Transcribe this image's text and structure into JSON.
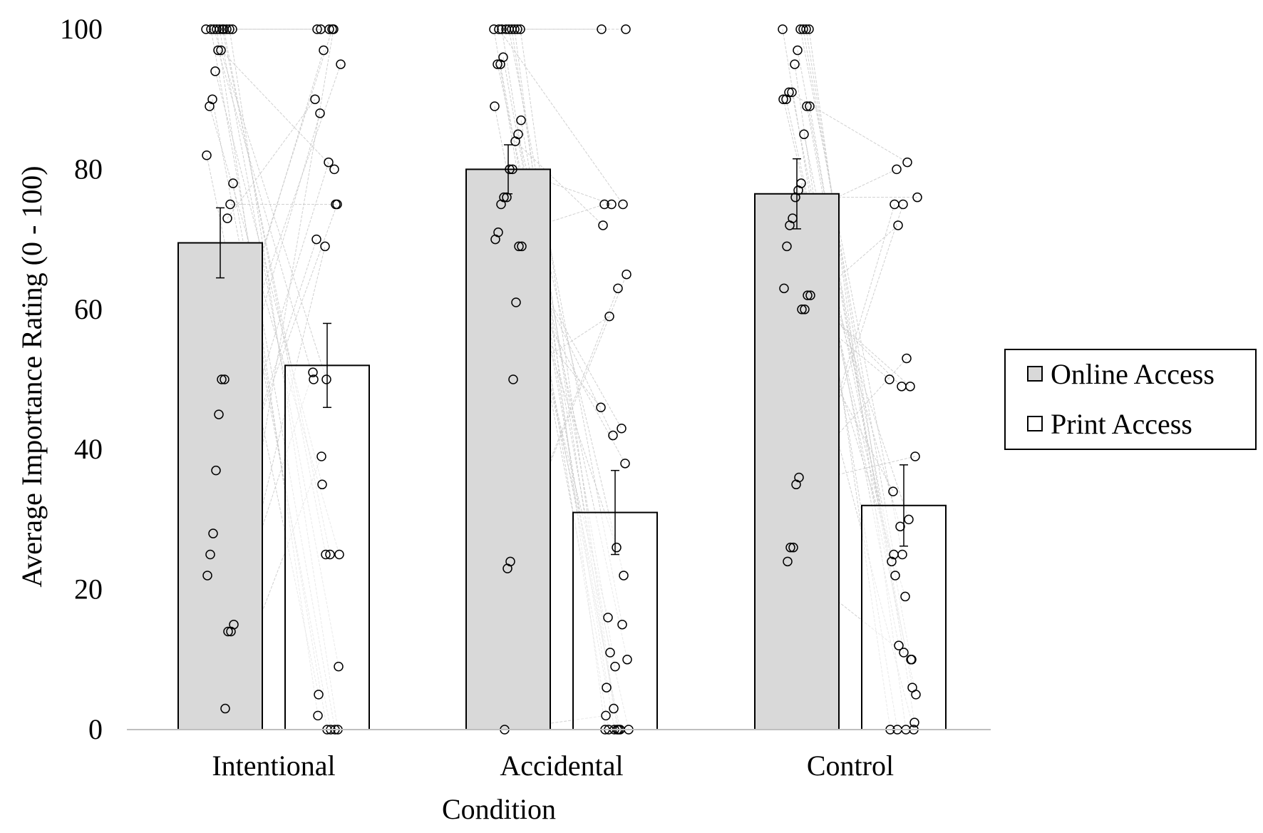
{
  "chart_data": {
    "type": "bar",
    "categories": [
      "Intentional",
      "Accidental",
      "Control"
    ],
    "series": [
      {
        "name": "Online Access",
        "values": [
          69.5,
          80,
          76.5
        ],
        "error": [
          5,
          3.5,
          5
        ]
      },
      {
        "name": "Print Access",
        "values": [
          52,
          31,
          32
        ],
        "error": [
          6,
          6,
          5.8
        ]
      }
    ],
    "xlabel": "Condition",
    "ylabel": "Average Importance Rating (0 - 100)",
    "ylim": [
      0,
      100
    ],
    "yticks": [
      "0",
      "20",
      "40",
      "60",
      "80",
      "100"
    ],
    "grid": false,
    "legend_position": "right",
    "colors": {
      "online_fill": "#d9d9d9",
      "print_fill": "#ffffff",
      "bar_stroke": "#000000",
      "pair_line": "#c8c8c8",
      "point_stroke": "#000000"
    },
    "individual_points": [
      {
        "category": "Intentional",
        "pairs": [
          [
            100,
            100
          ],
          [
            100,
            100
          ],
          [
            100,
            0
          ],
          [
            100,
            100
          ],
          [
            100,
            25
          ],
          [
            97,
            80
          ],
          [
            97,
            50
          ],
          [
            94,
            35
          ],
          [
            90,
            0
          ],
          [
            89,
            25
          ],
          [
            82,
            5
          ],
          [
            78,
            0
          ],
          [
            75,
            75
          ],
          [
            73,
            90
          ],
          [
            50,
            97
          ],
          [
            50,
            100
          ],
          [
            45,
            95
          ],
          [
            37,
            88
          ],
          [
            28,
            81
          ],
          [
            25,
            75
          ],
          [
            22,
            70
          ],
          [
            15,
            69
          ],
          [
            14,
            100
          ],
          [
            14,
            51
          ],
          [
            3,
            39
          ],
          [
            100,
            25
          ],
          [
            100,
            9
          ],
          [
            100,
            2
          ],
          [
            100,
            50
          ],
          [
            100,
            0
          ]
        ]
      },
      {
        "category": "Accidental",
        "pairs": [
          [
            100,
            0
          ],
          [
            100,
            0
          ],
          [
            100,
            100
          ],
          [
            100,
            0
          ],
          [
            100,
            3
          ],
          [
            100,
            15
          ],
          [
            100,
            100
          ],
          [
            96,
            11
          ],
          [
            95,
            0
          ],
          [
            95,
            10
          ],
          [
            89,
            6
          ],
          [
            87,
            9
          ],
          [
            85,
            22
          ],
          [
            84,
            72
          ],
          [
            80,
            75
          ],
          [
            80,
            0
          ],
          [
            76,
            0
          ],
          [
            76,
            16
          ],
          [
            75,
            26
          ],
          [
            71,
            38
          ],
          [
            70,
            75
          ],
          [
            69,
            42
          ],
          [
            69,
            43
          ],
          [
            61,
            46
          ],
          [
            50,
            59
          ],
          [
            24,
            63
          ],
          [
            23,
            65
          ],
          [
            0,
            2
          ],
          [
            100,
            0
          ],
          [
            100,
            75
          ]
        ]
      },
      {
        "category": "Control",
        "pairs": [
          [
            100,
            0
          ],
          [
            100,
            0
          ],
          [
            100,
            1
          ],
          [
            100,
            25
          ],
          [
            100,
            25
          ],
          [
            97,
            10
          ],
          [
            95,
            0
          ],
          [
            91,
            12
          ],
          [
            91,
            81
          ],
          [
            90,
            5
          ],
          [
            90,
            22
          ],
          [
            89,
            11
          ],
          [
            89,
            6
          ],
          [
            85,
            24
          ],
          [
            78,
            29
          ],
          [
            77,
            30
          ],
          [
            76,
            76
          ],
          [
            73,
            80
          ],
          [
            72,
            19
          ],
          [
            69,
            0
          ],
          [
            63,
            34
          ],
          [
            62,
            49
          ],
          [
            62,
            49
          ],
          [
            60,
            50
          ],
          [
            60,
            72
          ],
          [
            36,
            53
          ],
          [
            35,
            39
          ],
          [
            26,
            75
          ],
          [
            26,
            75
          ],
          [
            24,
            10
          ]
        ]
      }
    ]
  }
}
